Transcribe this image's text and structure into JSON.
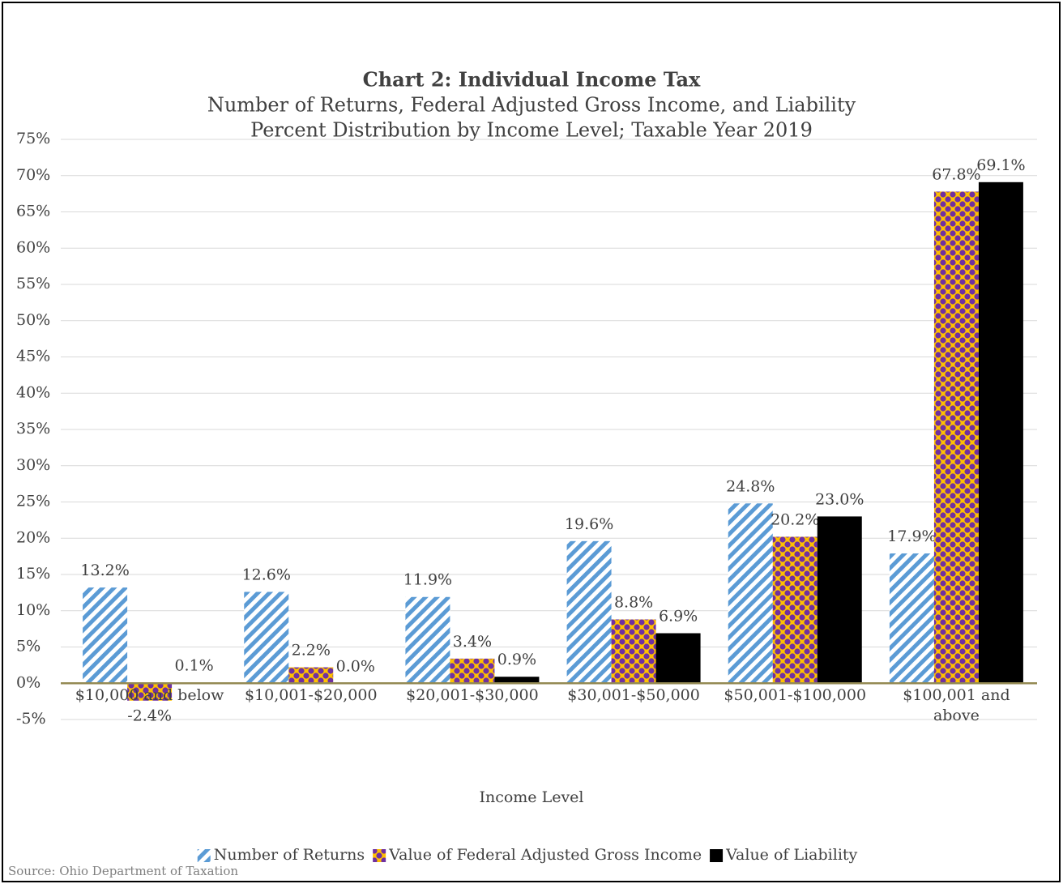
{
  "chart_data": {
    "type": "bar",
    "title": "Chart 2: Individual Income Tax",
    "subtitle": [
      "Number of Returns, Federal Adjusted Gross Income, and Liability",
      "Percent Distribution by Income Level; Taxable Year 2019"
    ],
    "x_label": "Income Level",
    "source": "Source: Ohio Department of Taxation",
    "categories": [
      "$10,000 and below",
      "$10,001-$20,000",
      "$20,001-$30,000",
      "$30,001-$50,000",
      "$50,001-$100,000",
      "$100,001 and above"
    ],
    "series": [
      {
        "name": "Number of Returns",
        "color": "#5b9bd5",
        "values": [
          13.2,
          12.6,
          11.9,
          19.6,
          24.8,
          17.9
        ],
        "value_labels": [
          "13.2%",
          "12.6%",
          "11.9%",
          "19.6%",
          "24.8%",
          "17.9%"
        ]
      },
      {
        "name": "Value of Federal Adjusted Gross Income",
        "color": "#ffc000",
        "values": [
          -2.4,
          2.2,
          3.4,
          8.8,
          20.2,
          67.8
        ],
        "value_labels": [
          "-2.4%",
          "2.2%",
          "3.4%",
          "8.8%",
          "20.2%",
          "67.8%"
        ]
      },
      {
        "name": "Value of Liability",
        "color": "#000000",
        "values": [
          0.1,
          0.0,
          0.9,
          6.9,
          23.0,
          69.1
        ],
        "value_labels": [
          "0.1%",
          "0.0%",
          "0.9%",
          "6.9%",
          "23.0%",
          "69.1%"
        ]
      }
    ],
    "ylim": [
      -5,
      75
    ],
    "yticks": [
      {
        "value": -5,
        "label": "-5%"
      },
      {
        "value": 0,
        "label": "0%"
      },
      {
        "value": 5,
        "label": "5%"
      },
      {
        "value": 10,
        "label": "10%"
      },
      {
        "value": 15,
        "label": "15%"
      },
      {
        "value": 20,
        "label": "20%"
      },
      {
        "value": 25,
        "label": "25%"
      },
      {
        "value": 30,
        "label": "30%"
      },
      {
        "value": 35,
        "label": "35%"
      },
      {
        "value": 40,
        "label": "40%"
      },
      {
        "value": 45,
        "label": "45%"
      },
      {
        "value": 50,
        "label": "50%"
      },
      {
        "value": 55,
        "label": "55%"
      },
      {
        "value": 60,
        "label": "60%"
      },
      {
        "value": 65,
        "label": "65%"
      },
      {
        "value": 70,
        "label": "70%"
      },
      {
        "value": 75,
        "label": "75%"
      }
    ],
    "grid": true,
    "legend": "bottom"
  }
}
